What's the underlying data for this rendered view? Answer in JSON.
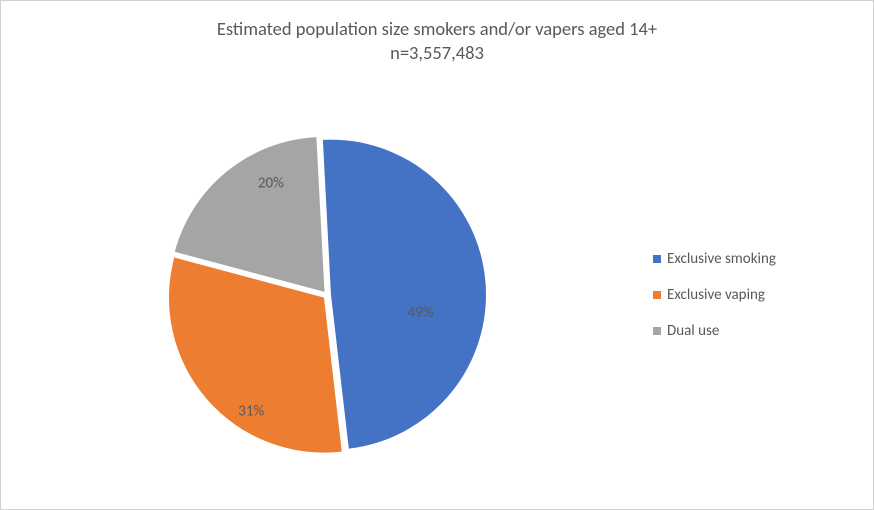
{
  "chart": {
    "type": "pie",
    "title_line1": "Estimated population size smokers and/or vapers aged 14+",
    "title_line2": "n=3,557,483",
    "title_color": "#595959",
    "title_fontsize": 18.5,
    "background_color": "#ffffff",
    "border_color": "#d0d0d0",
    "label_color": "#595959",
    "label_fontsize": 15,
    "pie_radius": 155,
    "explode_gap": 4,
    "start_angle_deg": -3,
    "slices": [
      {
        "label": "Exclusive smoking",
        "value": 49,
        "display": "49%",
        "color": "#4472c4"
      },
      {
        "label": "Exclusive vaping",
        "value": 31,
        "display": "31%",
        "color": "#ed7d31"
      },
      {
        "label": "Dual use",
        "value": 20,
        "display": "20%",
        "color": "#a5a5a5"
      }
    ],
    "legend": {
      "marker_size": 8,
      "text_color": "#595959",
      "fontsize": 15
    }
  }
}
